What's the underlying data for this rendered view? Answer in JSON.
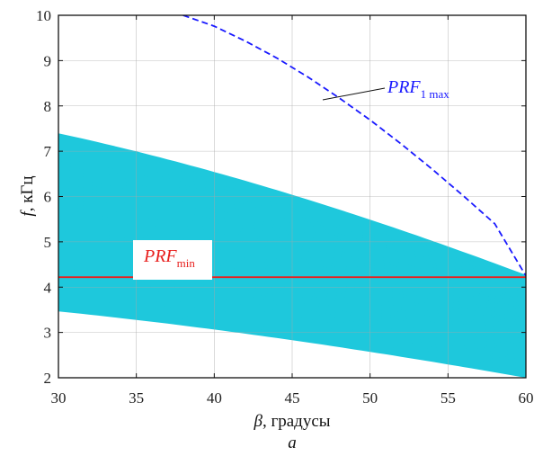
{
  "chart_data": {
    "type": "area",
    "x_range": [
      30,
      60
    ],
    "y_range": [
      2,
      10
    ],
    "x_ticks": [
      30,
      35,
      40,
      45,
      50,
      55,
      60
    ],
    "y_ticks": [
      2,
      3,
      4,
      5,
      6,
      7,
      8,
      9,
      10
    ],
    "x_tick_labels": [
      "30",
      "35",
      "40",
      "45",
      "50",
      "55",
      "60"
    ],
    "y_tick_labels": [
      "2",
      "3",
      "4",
      "5",
      "6",
      "7",
      "8",
      "9",
      "10"
    ],
    "xlabel_symbol": "β",
    "xlabel_text": ", градусы",
    "ylabel_symbol": "f",
    "ylabel_text": ", кГц",
    "grid": true,
    "band_color": "#1ec8dc",
    "gap_color": "#ffffff",
    "band_family": {
      "count": 48,
      "y_at_beta_60_bottom": 2.0,
      "y_at_beta_60_top": 4.2,
      "curve_form": "f(β) ∝ cos(β)"
    },
    "series": [
      {
        "name": "PRF1 max",
        "label_main": "PRF",
        "label_sub": "1 max",
        "color": "#1a1aff",
        "style": "dashed",
        "x": [
          38,
          40,
          42,
          44,
          46,
          48,
          50,
          52,
          54,
          56,
          58,
          60
        ],
        "y": [
          10.0,
          9.76,
          9.43,
          9.06,
          8.64,
          8.18,
          7.69,
          7.16,
          6.6,
          6.01,
          5.4,
          4.25
        ]
      },
      {
        "name": "PRFmin",
        "label_main": "PRF",
        "label_sub": "min",
        "color": "#e8201e",
        "style": "solid",
        "x": [
          30,
          60
        ],
        "y": [
          4.22,
          4.22
        ]
      }
    ],
    "caption": "а"
  }
}
